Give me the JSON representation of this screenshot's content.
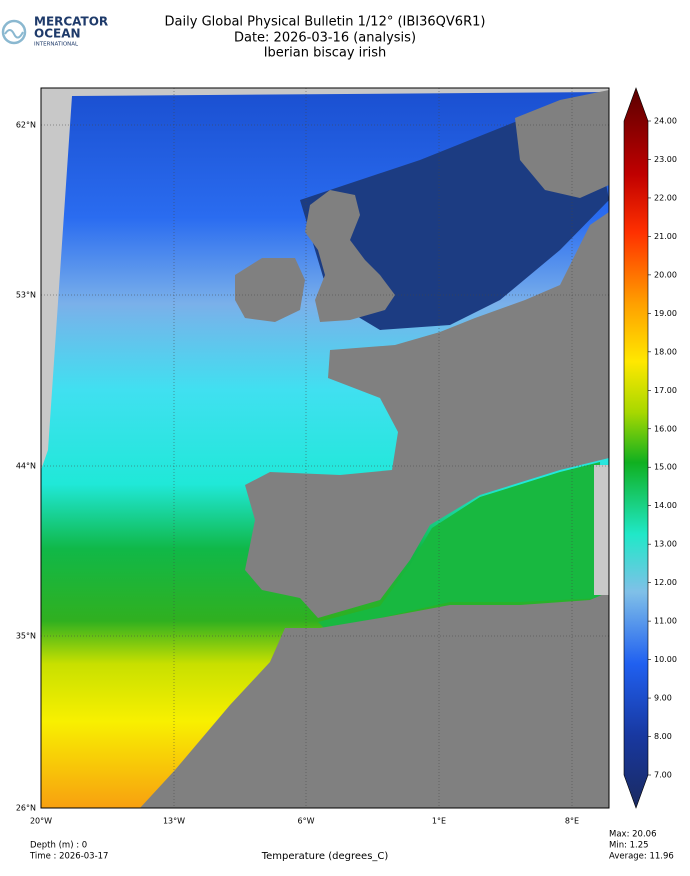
{
  "logo": {
    "line1": "MERCATOR",
    "line2": "OCEAN",
    "line3": "INTERNATIONAL"
  },
  "header": {
    "title": "Daily Global Physical Bulletin 1/12° (IBI36QV6R1)",
    "date": "Date: 2026-03-16 (analysis)",
    "region": "Iberian biscay irish"
  },
  "map": {
    "lat_labels": [
      "62°N",
      "53°N",
      "44°N",
      "35°N",
      "26°N"
    ],
    "lon_labels": [
      "20°W",
      "13°W",
      "6°W",
      "1°E",
      "8°E"
    ]
  },
  "colorbar": {
    "ticks": [
      "24.00",
      "23.00",
      "22.00",
      "21.00",
      "20.00",
      "19.00",
      "18.00",
      "17.00",
      "16.00",
      "15.00",
      "14.00",
      "13.00",
      "12.00",
      "11.00",
      "10.00",
      "9.00",
      "8.00",
      "7.00"
    ]
  },
  "footer": {
    "depth": "Depth (m) : 0",
    "time": "Time : 2026-03-17",
    "variable": "Temperature (degrees_C)",
    "max": "Max: 20.06",
    "min": "Min:  1.25",
    "average": "Average: 11.96"
  }
}
